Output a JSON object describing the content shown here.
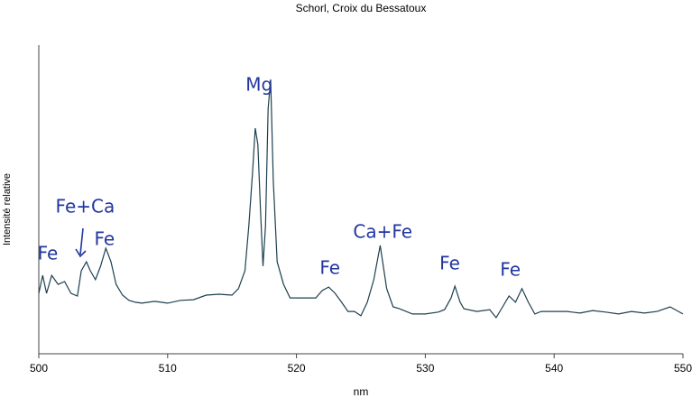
{
  "chart_data": {
    "type": "line",
    "title": "Schorl, Croix du Bessatoux",
    "x_label": "nm",
    "y_label": "Intensité relative",
    "x": [
      500,
      500.3,
      500.6,
      501,
      501.5,
      502,
      502.5,
      503,
      503.3,
      503.7,
      504,
      504.4,
      504.8,
      505.2,
      505.6,
      506,
      506.5,
      507,
      507.5,
      508,
      509,
      510,
      511,
      512,
      513,
      514,
      515,
      515.5,
      516,
      516.3,
      516.6,
      516.8,
      517,
      517.2,
      517.4,
      517.6,
      517.8,
      518,
      518.2,
      518.5,
      519,
      519.5,
      520,
      521,
      521.5,
      522,
      522.5,
      523,
      523.5,
      524,
      524.5,
      525,
      525.5,
      526,
      526.5,
      527,
      527.5,
      528,
      529,
      530,
      531,
      531.5,
      532,
      532.3,
      532.7,
      533,
      534,
      535,
      535.5,
      536,
      536.5,
      537,
      537.5,
      538,
      538.5,
      539,
      540,
      541,
      542,
      543,
      544,
      545,
      546,
      547,
      548,
      549,
      550
    ],
    "y": [
      19.6,
      25.4,
      19.6,
      25.4,
      22.5,
      23.4,
      19.6,
      18.7,
      26.9,
      29.8,
      26.9,
      24.0,
      28.4,
      34.2,
      29.8,
      22.5,
      19.0,
      17.3,
      16.7,
      16.4,
      17.0,
      16.4,
      17.3,
      17.5,
      19.0,
      19.3,
      19.0,
      21.1,
      26.9,
      41.5,
      59.1,
      73.1,
      67.8,
      47.4,
      28.4,
      41.5,
      79.5,
      88.9,
      56.1,
      29.8,
      22.5,
      18.1,
      18.1,
      18.1,
      18.1,
      20.5,
      21.6,
      19.6,
      16.7,
      13.7,
      13.7,
      12.3,
      16.7,
      24.0,
      35.1,
      21.1,
      15.2,
      14.6,
      12.9,
      12.9,
      13.5,
      14.3,
      18.1,
      21.9,
      16.7,
      14.6,
      13.7,
      14.3,
      11.7,
      15.2,
      18.7,
      16.7,
      21.1,
      16.7,
      12.9,
      13.7,
      13.7,
      13.7,
      13.2,
      14.0,
      13.5,
      12.9,
      13.7,
      13.2,
      13.7,
      15.2,
      12.9
    ],
    "color": "#1d3f4f",
    "xlim": [
      500,
      550
    ],
    "xticks": [
      500,
      510,
      520,
      530,
      540,
      550
    ],
    "ylim": [
      0,
      100
    ],
    "annotations": [
      {
        "text": "Fe",
        "x": 500.7,
        "y": 32.2
      },
      {
        "text": "Fe+Ca",
        "x": 503.6,
        "y": 47.4
      },
      {
        "text": "Fe",
        "x": 505.1,
        "y": 36.8
      },
      {
        "text": "Mg",
        "x": 517.1,
        "y": 86.8
      },
      {
        "text": "Fe",
        "x": 522.6,
        "y": 27.5
      },
      {
        "text": "Ca+Fe",
        "x": 526.7,
        "y": 39.2
      },
      {
        "text": "Fe",
        "x": 531.9,
        "y": 28.9
      },
      {
        "text": "Fe",
        "x": 536.6,
        "y": 26.9
      }
    ]
  }
}
